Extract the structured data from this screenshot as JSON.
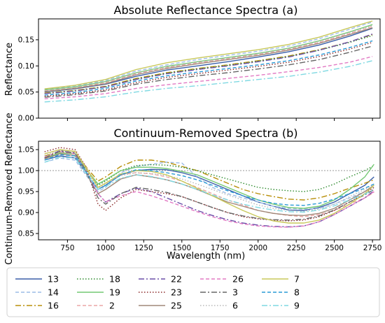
{
  "chart_data": [
    {
      "type": "line",
      "title": "Absolute Reflectance Spectra (a)",
      "xlabel": "",
      "ylabel": "Reflectance",
      "xlim": [
        560,
        2800
      ],
      "ylim": [
        0.0,
        0.19
      ],
      "yticks": [
        0.0,
        0.05,
        0.1,
        0.15
      ],
      "ytick_labels": [
        "0.00",
        "0.05",
        "0.10",
        "0.15"
      ],
      "x_tick_labels_shown": false,
      "x": [
        600,
        800,
        1000,
        1200,
        1400,
        1600,
        1800,
        2000,
        2200,
        2400,
        2600,
        2750
      ],
      "series": [
        {
          "name": "13",
          "values": [
            0.05,
            0.056,
            0.065,
            0.08,
            0.092,
            0.1,
            0.108,
            0.117,
            0.127,
            0.14,
            0.157,
            0.172
          ]
        },
        {
          "name": "14",
          "values": [
            0.055,
            0.062,
            0.072,
            0.09,
            0.102,
            0.112,
            0.12,
            0.128,
            0.138,
            0.152,
            0.17,
            0.184
          ]
        },
        {
          "name": "16",
          "values": [
            0.048,
            0.053,
            0.061,
            0.076,
            0.087,
            0.095,
            0.102,
            0.11,
            0.119,
            0.131,
            0.146,
            0.16
          ]
        },
        {
          "name": "18",
          "values": [
            0.047,
            0.052,
            0.06,
            0.075,
            0.086,
            0.094,
            0.101,
            0.109,
            0.118,
            0.13,
            0.145,
            0.158
          ]
        },
        {
          "name": "19",
          "values": [
            0.054,
            0.06,
            0.07,
            0.087,
            0.099,
            0.108,
            0.116,
            0.124,
            0.134,
            0.148,
            0.165,
            0.179
          ]
        },
        {
          "name": "2",
          "values": [
            0.052,
            0.058,
            0.068,
            0.085,
            0.097,
            0.106,
            0.114,
            0.122,
            0.132,
            0.145,
            0.162,
            0.176
          ]
        },
        {
          "name": "22",
          "values": [
            0.047,
            0.052,
            0.06,
            0.074,
            0.085,
            0.093,
            0.1,
            0.108,
            0.117,
            0.13,
            0.146,
            0.161
          ]
        },
        {
          "name": "23",
          "values": [
            0.042,
            0.047,
            0.054,
            0.068,
            0.078,
            0.085,
            0.092,
            0.099,
            0.107,
            0.118,
            0.132,
            0.145
          ]
        },
        {
          "name": "25",
          "values": [
            0.051,
            0.057,
            0.066,
            0.083,
            0.095,
            0.104,
            0.112,
            0.12,
            0.13,
            0.143,
            0.16,
            0.173
          ]
        },
        {
          "name": "26",
          "values": [
            0.037,
            0.041,
            0.047,
            0.057,
            0.064,
            0.07,
            0.076,
            0.082,
            0.089,
            0.097,
            0.107,
            0.118
          ]
        },
        {
          "name": "3",
          "values": [
            0.04,
            0.045,
            0.052,
            0.065,
            0.074,
            0.081,
            0.087,
            0.094,
            0.102,
            0.112,
            0.126,
            0.138
          ]
        },
        {
          "name": "6",
          "values": [
            0.053,
            0.059,
            0.069,
            0.086,
            0.098,
            0.107,
            0.115,
            0.123,
            0.133,
            0.147,
            0.164,
            0.177
          ]
        },
        {
          "name": "7",
          "values": [
            0.056,
            0.063,
            0.074,
            0.093,
            0.106,
            0.115,
            0.123,
            0.131,
            0.141,
            0.155,
            0.173,
            0.186
          ]
        },
        {
          "name": "8",
          "values": [
            0.044,
            0.049,
            0.057,
            0.071,
            0.081,
            0.088,
            0.095,
            0.102,
            0.11,
            0.121,
            0.135,
            0.148
          ]
        },
        {
          "name": "9",
          "values": [
            0.031,
            0.035,
            0.041,
            0.05,
            0.057,
            0.062,
            0.068,
            0.074,
            0.08,
            0.088,
            0.099,
            0.11
          ]
        }
      ]
    },
    {
      "type": "line",
      "title": "Continuum-Removed Spectra (b)",
      "xlabel": "Wavelength (nm)",
      "ylabel": "Continuum-Removed Reflectance",
      "xlim": [
        560,
        2800
      ],
      "ylim": [
        0.835,
        1.07
      ],
      "xticks": [
        750,
        1000,
        1250,
        1500,
        1750,
        2000,
        2250,
        2500,
        2750
      ],
      "xtick_labels": [
        "750",
        "1000",
        "1250",
        "1500",
        "1750",
        "2000",
        "2250",
        "2500",
        "2750"
      ],
      "yticks": [
        0.85,
        0.9,
        0.95,
        1.0,
        1.05
      ],
      "ytick_labels": [
        "0.85",
        "0.90",
        "0.95",
        "1.00",
        "1.05"
      ],
      "reference_line": {
        "y": 1.0,
        "style": "dotted",
        "color": "#999999"
      },
      "x": [
        600,
        700,
        800,
        870,
        950,
        1000,
        1100,
        1200,
        1300,
        1400,
        1500,
        1600,
        1700,
        1800,
        1900,
        2000,
        2100,
        2200,
        2300,
        2400,
        2500,
        2600,
        2700,
        2760
      ],
      "series": [
        {
          "name": "13",
          "values": [
            1.025,
            1.035,
            1.03,
            0.995,
            0.955,
            0.965,
            0.99,
            1.0,
            1.003,
            1.002,
            0.995,
            0.985,
            0.97,
            0.955,
            0.94,
            0.925,
            0.915,
            0.906,
            0.905,
            0.912,
            0.925,
            0.945,
            0.965,
            0.985
          ]
        },
        {
          "name": "14",
          "values": [
            1.02,
            1.03,
            1.025,
            0.99,
            0.95,
            0.96,
            0.995,
            1.01,
            1.015,
            1.02,
            1.018,
            0.985,
            0.96,
            0.945,
            0.935,
            0.925,
            0.915,
            0.91,
            0.908,
            0.91,
            0.92,
            0.935,
            0.95,
            0.96
          ]
        },
        {
          "name": "16",
          "values": [
            1.035,
            1.045,
            1.04,
            1.01,
            0.975,
            0.985,
            1.01,
            1.025,
            1.025,
            1.02,
            1.01,
            1.0,
            0.985,
            0.97,
            0.955,
            0.945,
            0.938,
            0.932,
            0.93,
            0.935,
            0.945,
            0.958,
            0.97,
            0.978
          ]
        },
        {
          "name": "18",
          "values": [
            1.03,
            1.04,
            1.035,
            1.0,
            0.965,
            0.975,
            1.0,
            1.012,
            1.014,
            1.013,
            1.008,
            1.0,
            0.99,
            0.98,
            0.97,
            0.96,
            0.955,
            0.952,
            0.95,
            0.955,
            0.968,
            0.985,
            1.0,
            1.012
          ]
        },
        {
          "name": "19",
          "values": [
            1.03,
            1.042,
            1.04,
            1.005,
            0.968,
            0.978,
            1.0,
            1.008,
            1.008,
            1.005,
            0.998,
            0.99,
            0.975,
            0.96,
            0.945,
            0.93,
            0.92,
            0.912,
            0.91,
            0.915,
            0.93,
            0.955,
            0.985,
            1.015
          ]
        },
        {
          "name": "2",
          "values": [
            1.04,
            1.05,
            1.045,
            1.01,
            0.96,
            0.97,
            0.99,
            0.995,
            0.992,
            0.985,
            0.975,
            0.96,
            0.945,
            0.93,
            0.918,
            0.905,
            0.898,
            0.893,
            0.89,
            0.895,
            0.905,
            0.92,
            0.935,
            0.948
          ]
        },
        {
          "name": "22",
          "values": [
            1.03,
            1.048,
            1.042,
            1.0,
            0.945,
            0.925,
            0.945,
            0.958,
            0.95,
            0.935,
            0.92,
            0.905,
            0.893,
            0.883,
            0.875,
            0.87,
            0.867,
            0.866,
            0.868,
            0.878,
            0.895,
            0.915,
            0.935,
            0.952
          ]
        },
        {
          "name": "23",
          "values": [
            1.045,
            1.055,
            1.05,
            1.01,
            0.92,
            0.905,
            0.935,
            0.955,
            0.95,
            0.945,
            0.938,
            0.925,
            0.912,
            0.9,
            0.89,
            0.885,
            0.882,
            0.88,
            0.882,
            0.89,
            0.905,
            0.925,
            0.945,
            0.96
          ]
        },
        {
          "name": "25",
          "values": [
            1.028,
            1.04,
            1.036,
            0.995,
            0.945,
            0.955,
            0.98,
            0.99,
            0.985,
            0.978,
            0.968,
            0.955,
            0.94,
            0.925,
            0.915,
            0.905,
            0.898,
            0.894,
            0.893,
            0.898,
            0.91,
            0.93,
            0.95,
            0.965
          ]
        },
        {
          "name": "26",
          "values": [
            1.032,
            1.045,
            1.04,
            1.0,
            0.945,
            0.925,
            0.94,
            0.95,
            0.94,
            0.928,
            0.915,
            0.902,
            0.89,
            0.88,
            0.873,
            0.868,
            0.866,
            0.865,
            0.868,
            0.878,
            0.895,
            0.915,
            0.935,
            0.95
          ]
        },
        {
          "name": "3",
          "values": [
            1.03,
            1.046,
            1.042,
            1.0,
            0.935,
            0.92,
            0.945,
            0.96,
            0.955,
            0.948,
            0.938,
            0.925,
            0.912,
            0.9,
            0.892,
            0.886,
            0.883,
            0.882,
            0.884,
            0.892,
            0.906,
            0.925,
            0.942,
            0.955
          ]
        },
        {
          "name": "6",
          "values": [
            1.036,
            1.048,
            1.044,
            1.005,
            0.958,
            0.968,
            0.988,
            0.995,
            0.993,
            0.988,
            0.98,
            0.968,
            0.955,
            0.942,
            0.93,
            0.918,
            0.91,
            0.905,
            0.903,
            0.908,
            0.92,
            0.938,
            0.955,
            0.968
          ]
        },
        {
          "name": "7",
          "values": [
            1.04,
            1.05,
            1.046,
            1.008,
            0.96,
            0.97,
            0.992,
            1.0,
            0.998,
            0.99,
            0.975,
            0.958,
            0.94,
            0.922,
            0.905,
            0.89,
            0.88,
            0.875,
            0.875,
            0.882,
            0.898,
            0.92,
            0.945,
            0.965
          ]
        },
        {
          "name": "8",
          "values": [
            1.025,
            1.038,
            1.035,
            0.998,
            0.955,
            0.965,
            0.99,
            1.002,
            1.0,
            0.995,
            0.988,
            0.978,
            0.965,
            0.952,
            0.94,
            0.93,
            0.922,
            0.918,
            0.917,
            0.922,
            0.932,
            0.945,
            0.958,
            0.968
          ]
        },
        {
          "name": "9",
          "values": [
            1.02,
            1.032,
            1.03,
            0.995,
            0.955,
            0.962,
            0.982,
            0.99,
            0.986,
            0.978,
            0.968,
            0.955,
            0.942,
            0.93,
            0.92,
            0.912,
            0.906,
            0.902,
            0.901,
            0.906,
            0.916,
            0.93,
            0.944,
            0.955
          ]
        }
      ]
    }
  ],
  "legend": {
    "placement": "bottom",
    "entries": [
      {
        "label": "13",
        "color": "#3a5fa8",
        "dash": ""
      },
      {
        "label": "14",
        "color": "#9cbce6",
        "dash": "5,3"
      },
      {
        "label": "16",
        "color": "#b88f0a",
        "dash": "8,3,2,3"
      },
      {
        "label": "18",
        "color": "#2e8b2e",
        "dash": "1.5,2.5"
      },
      {
        "label": "19",
        "color": "#73c873",
        "dash": ""
      },
      {
        "label": "2",
        "color": "#eba6a6",
        "dash": "5,3"
      },
      {
        "label": "22",
        "color": "#6a4fa8",
        "dash": "8,3,2,3"
      },
      {
        "label": "23",
        "color": "#8b2a2a",
        "dash": "1.5,2.5"
      },
      {
        "label": "25",
        "color": "#a08878",
        "dash": ""
      },
      {
        "label": "26",
        "color": "#e27ac4",
        "dash": "5,3"
      },
      {
        "label": "3",
        "color": "#666666",
        "dash": "8,3,2,3"
      },
      {
        "label": "6",
        "color": "#b8b8b8",
        "dash": "1.5,2.5"
      },
      {
        "label": "7",
        "color": "#c8c85a",
        "dash": ""
      },
      {
        "label": "8",
        "color": "#2a9bd6",
        "dash": "5,3"
      },
      {
        "label": "9",
        "color": "#7fd9e2",
        "dash": "8,3,2,3"
      }
    ]
  }
}
